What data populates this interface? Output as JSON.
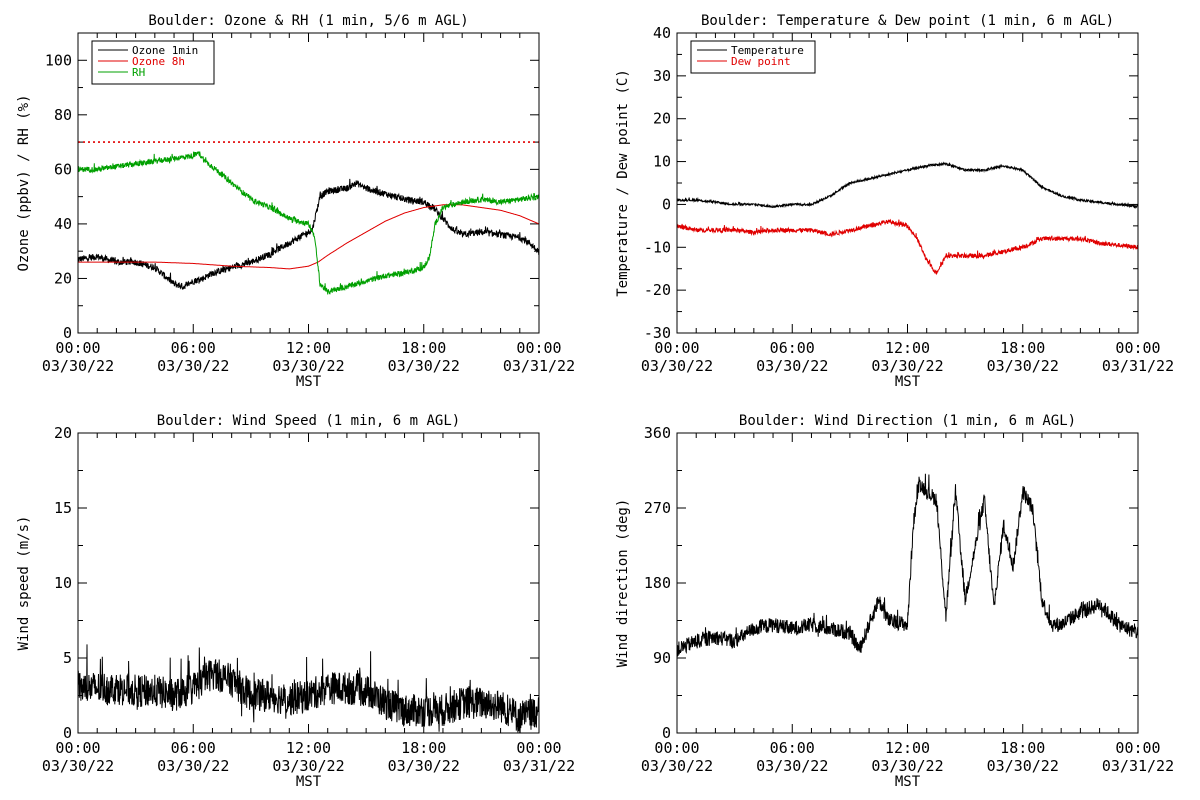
{
  "chart_data": [
    {
      "type": "line",
      "title": "Boulder: Ozone & RH (1 min, 5/6 m AGL)",
      "ylabel": "Ozone (ppbv) / RH (%)",
      "xlabel": "MST",
      "ylim": [
        0,
        110
      ],
      "yticks": [
        0,
        20,
        40,
        60,
        80,
        100
      ],
      "xlim": [
        0,
        24
      ],
      "xtick_hours": [
        0,
        6,
        12,
        18,
        24
      ],
      "xtick_times": [
        "00:00",
        "06:00",
        "12:00",
        "18:00",
        "00:00"
      ],
      "xtick_dates": [
        "03/30/22",
        "03/30/22",
        "03/30/22",
        "03/30/22",
        "03/31/22"
      ],
      "reference_line": {
        "y": 70,
        "color": "#e00000",
        "style": "dotted"
      },
      "legend_position": "top-left",
      "series": [
        {
          "name": "Ozone 1min",
          "color": "#000000",
          "noise": 1.2,
          "x": [
            0,
            1,
            2,
            3,
            4,
            4.5,
            5,
            5.5,
            6,
            6.5,
            7,
            8,
            9,
            10,
            11,
            12,
            12.2,
            12.4,
            12.6,
            13,
            14,
            14.5,
            15,
            16,
            17,
            18,
            18.5,
            19,
            19.5,
            20,
            21,
            22,
            23,
            23.5,
            24
          ],
          "y": [
            27,
            28,
            26,
            26,
            24,
            21,
            18,
            17,
            19,
            20,
            22,
            24,
            26,
            29,
            33,
            37,
            38,
            44,
            50,
            52,
            53,
            55,
            53,
            51,
            49,
            48,
            46,
            42,
            38,
            36,
            37,
            36,
            35,
            33,
            30
          ]
        },
        {
          "name": "Ozone 8h",
          "color": "#e00000",
          "noise": 0,
          "x": [
            0,
            2,
            4,
            6,
            8,
            10,
            11,
            12,
            12.5,
            13,
            14,
            15,
            16,
            17,
            18,
            19,
            20,
            21,
            22,
            23,
            24
          ],
          "y": [
            26,
            26,
            26,
            25.5,
            24.5,
            24,
            23.5,
            24.5,
            26,
            28.5,
            33,
            37,
            41,
            44,
            46,
            47,
            47,
            46,
            45,
            43,
            40
          ]
        },
        {
          "name": "RH",
          "color": "#00a000",
          "noise": 1.0,
          "x": [
            0,
            1,
            2,
            3,
            4,
            5,
            6,
            6.3,
            6.6,
            7,
            8,
            9,
            10,
            11,
            12,
            12.3,
            12.6,
            13,
            14,
            15,
            16,
            17,
            18,
            18.3,
            18.6,
            19,
            20,
            21,
            22,
            23,
            24
          ],
          "y": [
            60,
            60,
            61,
            62,
            63,
            64,
            65,
            66,
            63,
            61,
            55,
            49,
            46,
            42,
            40,
            36,
            18,
            15,
            17,
            19,
            21,
            22,
            24,
            28,
            40,
            46,
            48,
            49,
            48,
            49,
            50
          ]
        }
      ]
    },
    {
      "type": "line",
      "title": "Boulder: Temperature & Dew point (1 min, 6 m AGL)",
      "ylabel": "Temperature / Dew point (C)",
      "xlabel": "MST",
      "ylim": [
        -30,
        40
      ],
      "yticks": [
        -30,
        -20,
        -10,
        0,
        10,
        20,
        30,
        40
      ],
      "xlim": [
        0,
        24
      ],
      "xtick_hours": [
        0,
        6,
        12,
        18,
        24
      ],
      "xtick_times": [
        "00:00",
        "06:00",
        "12:00",
        "18:00",
        "00:00"
      ],
      "xtick_dates": [
        "03/30/22",
        "03/30/22",
        "03/30/22",
        "03/30/22",
        "03/31/22"
      ],
      "legend_position": "top-left",
      "series": [
        {
          "name": "Temperature",
          "color": "#000000",
          "noise": 0.25,
          "x": [
            0,
            1,
            2,
            3,
            4,
            5,
            6,
            7,
            8,
            9,
            10,
            11,
            12,
            13,
            14,
            15,
            16,
            17,
            18,
            19,
            20,
            21,
            22,
            23,
            24
          ],
          "y": [
            1,
            1,
            0.5,
            0,
            0,
            -0.5,
            0,
            0,
            2,
            5,
            6,
            7,
            8,
            9,
            9.5,
            8,
            8,
            9,
            8,
            4,
            2,
            1,
            0.5,
            0,
            -0.5
          ]
        },
        {
          "name": "Dew point",
          "color": "#e00000",
          "noise": 0.5,
          "x": [
            0,
            1,
            2,
            3,
            4,
            5,
            6,
            7,
            8,
            9,
            10,
            11,
            12,
            12.5,
            13,
            13.5,
            14,
            15,
            16,
            17,
            18,
            18.5,
            19,
            20,
            21,
            22,
            23,
            24
          ],
          "y": [
            -5,
            -6,
            -6,
            -6,
            -6.5,
            -6,
            -6,
            -6,
            -7,
            -6,
            -5,
            -4,
            -5,
            -8,
            -13,
            -16,
            -12,
            -12,
            -12,
            -11,
            -10,
            -9,
            -8,
            -8,
            -8,
            -9,
            -9.5,
            -10
          ]
        }
      ]
    },
    {
      "type": "line",
      "title": "Boulder: Wind Speed (1 min, 6 m AGL)",
      "ylabel": "Wind speed (m/s)",
      "xlabel": "MST",
      "ylim": [
        0,
        20
      ],
      "yticks": [
        0,
        5,
        10,
        15,
        20
      ],
      "xlim": [
        0,
        24
      ],
      "xtick_hours": [
        0,
        6,
        12,
        18,
        24
      ],
      "xtick_times": [
        "00:00",
        "06:00",
        "12:00",
        "18:00",
        "00:00"
      ],
      "xtick_dates": [
        "03/30/22",
        "03/30/22",
        "03/30/22",
        "03/30/22",
        "03/31/22"
      ],
      "series": [
        {
          "color": "#000000",
          "noise": 1.1,
          "floor": 0,
          "x": [
            0,
            1,
            2,
            3,
            4,
            5,
            6,
            7,
            8,
            9,
            10,
            11,
            12,
            13,
            14,
            15,
            16,
            17,
            18,
            19,
            20,
            21,
            22,
            23,
            24
          ],
          "y": [
            3,
            3,
            3,
            2.8,
            2.8,
            2.5,
            3,
            4,
            3.5,
            2.5,
            2.5,
            2.2,
            2.5,
            3,
            3,
            2.8,
            2,
            1.5,
            1.5,
            1.5,
            2,
            2,
            1.8,
            1,
            1.5
          ]
        }
      ]
    },
    {
      "type": "line",
      "title": "Boulder: Wind Direction (1 min, 6 m AGL)",
      "ylabel": "Wind direction (deg)",
      "xlabel": "MST",
      "ylim": [
        0,
        360
      ],
      "yticks": [
        0,
        90,
        180,
        270,
        360
      ],
      "xlim": [
        0,
        24
      ],
      "xtick_hours": [
        0,
        6,
        12,
        18,
        24
      ],
      "xtick_times": [
        "00:00",
        "06:00",
        "12:00",
        "18:00",
        "00:00"
      ],
      "xtick_dates": [
        "03/30/22",
        "03/30/22",
        "03/30/22",
        "03/30/22",
        "03/31/22"
      ],
      "series": [
        {
          "color": "#000000",
          "noise": 9,
          "floor": 0,
          "ceil": 360,
          "x": [
            0,
            1,
            2,
            3,
            4,
            5,
            6,
            7,
            8,
            9,
            9.5,
            10,
            10.5,
            11,
            12,
            12.3,
            12.6,
            13,
            13.5,
            14,
            14.5,
            15,
            15.5,
            16,
            16.5,
            17,
            17.5,
            18,
            18.5,
            19,
            19.5,
            20,
            21,
            22,
            23,
            24
          ],
          "y": [
            100,
            110,
            115,
            110,
            125,
            130,
            125,
            130,
            125,
            120,
            100,
            130,
            160,
            135,
            130,
            250,
            300,
            290,
            280,
            140,
            290,
            160,
            220,
            280,
            150,
            250,
            200,
            290,
            270,
            160,
            130,
            130,
            145,
            155,
            130,
            120
          ]
        }
      ]
    }
  ]
}
